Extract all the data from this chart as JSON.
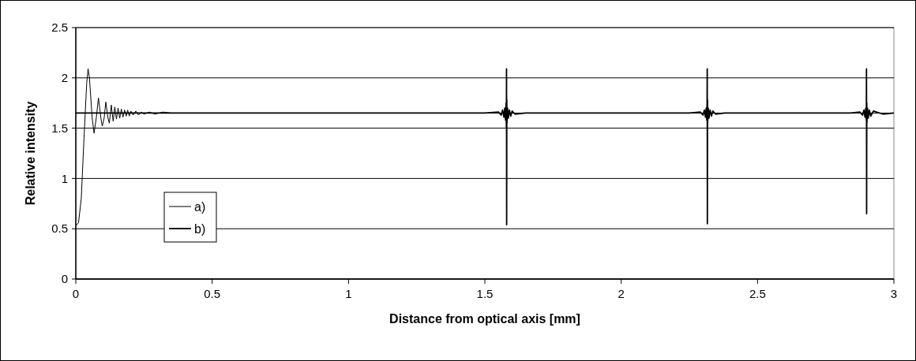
{
  "chart_data": {
    "type": "line",
    "xlabel": "Distance from optical axis [mm]",
    "ylabel": "Relative intensity",
    "xlim": [
      0,
      3
    ],
    "xticks": [
      0,
      0.5,
      1,
      1.5,
      2,
      2.5,
      3
    ],
    "ylim": [
      0,
      2.5
    ],
    "yticks": [
      0,
      0.5,
      1,
      1.5,
      2,
      2.5
    ],
    "grid": "y",
    "legend": "bottom left",
    "line_style": "solid",
    "series": [
      {
        "name": "a)",
        "color": "#000000",
        "x": [
          0,
          0.01,
          0.02,
          0.03,
          0.04,
          0.045,
          0.05,
          0.06,
          0.067,
          0.075,
          0.083,
          0.092,
          0.097,
          0.104,
          0.11,
          0.118,
          0.123,
          0.13,
          0.137,
          0.143,
          0.149,
          0.155,
          0.161,
          0.167,
          0.173,
          0.179,
          0.185,
          0.19,
          0.196,
          0.202,
          0.21,
          0.22,
          0.23,
          0.24,
          0.25,
          0.27,
          0.29,
          0.32,
          0.35,
          3
        ],
        "values": [
          0.53,
          0.56,
          0.8,
          1.4,
          1.95,
          2.09,
          2.0,
          1.6,
          1.45,
          1.6,
          1.8,
          1.6,
          1.52,
          1.6,
          1.76,
          1.6,
          1.55,
          1.73,
          1.57,
          1.71,
          1.59,
          1.7,
          1.6,
          1.69,
          1.61,
          1.68,
          1.62,
          1.68,
          1.62,
          1.67,
          1.63,
          1.67,
          1.63,
          1.66,
          1.64,
          1.66,
          1.64,
          1.66,
          1.65,
          1.65
        ]
      },
      {
        "name": "b)",
        "color": "#000000",
        "x": [
          0,
          1.5,
          1.55,
          1.56,
          1.565,
          1.57,
          1.573,
          1.576,
          1.578,
          1.579,
          1.5795,
          1.58,
          1.5805,
          1.581,
          1.583,
          1.586,
          1.59,
          1.595,
          1.6,
          1.61,
          1.65,
          2.25,
          2.29,
          2.3,
          2.305,
          2.309,
          2.312,
          2.314,
          2.315,
          2.3155,
          2.316,
          2.3165,
          2.317,
          2.319,
          2.322,
          2.326,
          2.331,
          2.336,
          2.346,
          2.38,
          2.84,
          2.875,
          2.885,
          2.89,
          2.894,
          2.897,
          2.899,
          2.8995,
          2.9,
          2.9005,
          2.901,
          2.903,
          2.906,
          2.91,
          2.915,
          2.925,
          2.96,
          3
        ],
        "values": [
          1.65,
          1.65,
          1.66,
          1.63,
          1.68,
          1.61,
          1.7,
          1.58,
          1.75,
          1.5,
          2.09,
          0.54,
          1.78,
          1.55,
          1.7,
          1.6,
          1.68,
          1.62,
          1.67,
          1.64,
          1.65,
          1.65,
          1.66,
          1.63,
          1.68,
          1.61,
          1.7,
          1.58,
          1.75,
          2.09,
          0.55,
          1.78,
          1.55,
          1.7,
          1.6,
          1.68,
          1.62,
          1.67,
          1.64,
          1.65,
          1.65,
          1.66,
          1.63,
          1.68,
          1.61,
          1.7,
          1.58,
          2.09,
          0.65,
          1.75,
          1.55,
          1.7,
          1.6,
          1.68,
          1.62,
          1.67,
          1.64,
          1.65
        ]
      }
    ]
  }
}
